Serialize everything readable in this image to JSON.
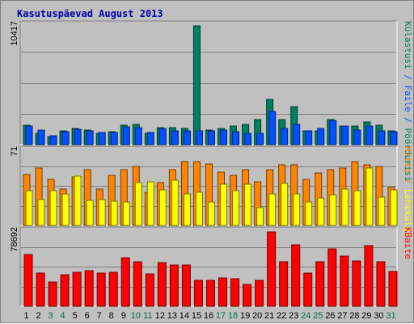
{
  "page": {
    "title": "Kasutuspäevad August 2013"
  },
  "colors": {
    "background": "#C0C0C0",
    "grid": "#808080",
    "hits": "#FF8400",
    "files": "#0050FF",
    "pages": "#FFFF00",
    "visits": "#008060",
    "kbytes": "#FF0000",
    "weekday_label": "#000000",
    "weekend_label": "#006E4A"
  },
  "chart_data": {
    "type": "bar",
    "title": "Kasutuspäevad August 2013",
    "categories": [
      "1",
      "2",
      "3",
      "4",
      "5",
      "6",
      "7",
      "8",
      "9",
      "10",
      "11",
      "12",
      "13",
      "14",
      "15",
      "16",
      "17",
      "18",
      "19",
      "20",
      "21",
      "22",
      "23",
      "24",
      "25",
      "26",
      "27",
      "28",
      "29",
      "30",
      "31"
    ],
    "weekend_days": [
      "3",
      "4",
      "10",
      "11",
      "17",
      "18",
      "24",
      "25",
      "31"
    ],
    "panels": [
      {
        "id": "top",
        "max_label": "10417",
        "ylim": [
          0,
          10417
        ],
        "series": [
          {
            "name": "Külastusi",
            "color_key": "visits",
            "values": [
              1700,
              1000,
              700,
              1200,
              1400,
              1300,
              1000,
              1100,
              1700,
              1800,
              1000,
              1500,
              1500,
              1400,
              10417,
              1300,
              1400,
              1600,
              1800,
              2200,
              4000,
              2200,
              3300,
              1200,
              1200,
              2200,
              1600,
              1600,
              2000,
              1700,
              1200
            ]
          },
          {
            "name": "Faile",
            "color_key": "files",
            "values": [
              1650,
              1300,
              750,
              1100,
              1350,
              1200,
              1050,
              1050,
              1550,
              1500,
              1050,
              1450,
              1200,
              1200,
              1200,
              1200,
              1300,
              1100,
              1000,
              1000,
              2900,
              1450,
              1800,
              1200,
              1400,
              2150,
              1600,
              1300,
              1650,
              1200,
              1150
            ]
          }
        ]
      },
      {
        "id": "middle",
        "max_label": "71",
        "ylim": [
          0,
          71
        ],
        "series": [
          {
            "name": "Hitte",
            "color_key": "hits",
            "values": [
              49,
              55,
              44,
              35,
              46,
              53,
              35,
              48,
              53,
              56,
              32,
              41,
              53,
              61,
              61,
              59,
              51,
              48,
              53,
              42,
              53,
              58,
              58,
              44,
              50,
              53,
              55,
              61,
              58,
              56,
              36
            ]
          },
          {
            "name": "Lehekülgi",
            "color_key": "pages",
            "values": [
              33,
              25,
              33,
              30,
              47,
              24,
              25,
              23,
              22,
              41,
              42,
              34,
              43,
              30,
              32,
              22,
              39,
              33,
              39,
              17,
              30,
              40,
              30,
              22,
              26,
              29,
              35,
              33,
              55,
              27,
              34
            ]
          }
        ]
      },
      {
        "id": "bottom",
        "max_label": "78692",
        "ylim": [
          0,
          78692
        ],
        "series": [
          {
            "name": "KBaite",
            "color_key": "kbytes",
            "values": [
              55000,
              35000,
              26000,
              33000,
              36000,
              38000,
              35000,
              36000,
              51000,
              47000,
              34000,
              46000,
              44000,
              44000,
              27000,
              27000,
              30000,
              29000,
              23000,
              27000,
              78692,
              47000,
              65000,
              35000,
              47000,
              61000,
              53000,
              48000,
              64000,
              47000,
              37000
            ]
          }
        ]
      }
    ],
    "right_labels": {
      "top": [
        {
          "text": "Külastusi",
          "color_key": "visits"
        },
        {
          "text": " / ",
          "color_key": "files"
        },
        {
          "text": "Faile",
          "color_key": "files"
        },
        {
          "text": " / ",
          "color_key": "files"
        },
        {
          "text": "Pöördumisi",
          "color_key": "visits"
        }
      ],
      "middle": [
        {
          "text": "Hitte",
          "color_key": "hits"
        },
        {
          "text": " / ",
          "color_key": "hits"
        },
        {
          "text": "Lehekülgi",
          "color_key": "pages"
        }
      ],
      "bottom": [
        {
          "text": "KBaite",
          "color_key": "kbytes"
        }
      ]
    }
  }
}
